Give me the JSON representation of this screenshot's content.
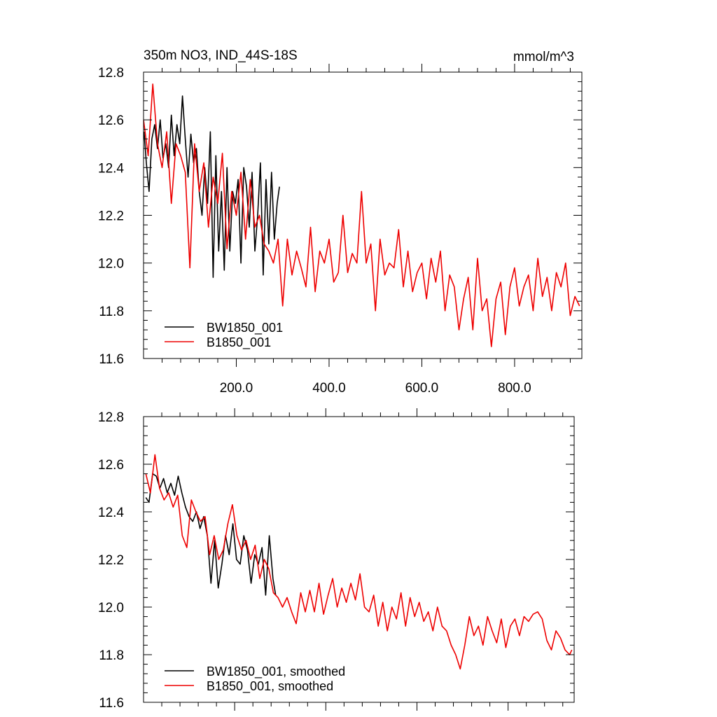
{
  "header": {
    "title": "350m NO3, IND_44S-18S",
    "units": "mmol/m^3"
  },
  "chart_data": [
    {
      "type": "line",
      "title": "350m NO3, IND_44S-18S",
      "units": "mmol/m^3",
      "xlim": [
        0,
        945
      ],
      "ylim": [
        11.6,
        12.8
      ],
      "x_ticks": [
        200,
        400,
        600,
        800
      ],
      "x_tick_labels": [
        "200.0",
        "400.0",
        "600.0",
        "800.0"
      ],
      "y_ticks": [
        11.6,
        11.8,
        12.0,
        12.2,
        12.4,
        12.6,
        12.8
      ],
      "y_tick_labels": [
        "11.6",
        "11.8",
        "12.0",
        "12.2",
        "12.4",
        "12.6",
        "12.8"
      ],
      "grid": false,
      "legend_position": "bottom-left",
      "series": [
        {
          "name": "BW1850_001",
          "color": "#000000",
          "x": [
            1,
            6,
            12,
            18,
            24,
            30,
            36,
            42,
            48,
            54,
            60,
            66,
            72,
            78,
            84,
            90,
            96,
            102,
            108,
            114,
            120,
            126,
            132,
            138,
            144,
            150,
            156,
            162,
            168,
            174,
            180,
            186,
            192,
            198,
            204,
            210,
            216,
            222,
            228,
            234,
            240,
            246,
            252,
            258,
            264,
            270,
            276,
            282,
            288,
            293
          ],
          "y": [
            12.55,
            12.42,
            12.3,
            12.52,
            12.58,
            12.48,
            12.6,
            12.44,
            12.5,
            12.4,
            12.62,
            12.45,
            12.58,
            12.5,
            12.7,
            12.52,
            12.36,
            12.54,
            12.42,
            12.48,
            12.3,
            12.2,
            12.4,
            12.25,
            12.55,
            11.94,
            12.45,
            12.05,
            12.3,
            11.97,
            12.4,
            12.05,
            12.3,
            12.25,
            12.35,
            12.0,
            12.4,
            12.32,
            12.15,
            12.38,
            12.05,
            12.2,
            12.42,
            11.95,
            12.35,
            12.08,
            12.38,
            12.1,
            12.25,
            12.32
          ]
        },
        {
          "name": "B1850_001",
          "color": "#ee0000",
          "x": [
            0,
            10,
            20,
            30,
            40,
            50,
            60,
            70,
            80,
            90,
            100,
            110,
            120,
            130,
            140,
            150,
            160,
            170,
            180,
            190,
            200,
            210,
            220,
            230,
            240,
            250,
            260,
            270,
            280,
            290,
            300,
            310,
            320,
            330,
            340,
            350,
            360,
            370,
            380,
            390,
            400,
            410,
            420,
            430,
            440,
            450,
            460,
            470,
            480,
            490,
            500,
            510,
            520,
            530,
            540,
            550,
            560,
            570,
            580,
            590,
            600,
            610,
            620,
            630,
            640,
            650,
            660,
            670,
            680,
            690,
            700,
            710,
            720,
            730,
            740,
            750,
            760,
            770,
            780,
            790,
            800,
            810,
            820,
            830,
            840,
            850,
            860,
            870,
            880,
            890,
            900,
            910,
            920,
            930,
            940
          ],
          "y": [
            12.6,
            12.45,
            12.75,
            12.5,
            12.4,
            12.55,
            12.25,
            12.5,
            12.45,
            12.38,
            11.98,
            12.5,
            12.3,
            12.42,
            12.15,
            12.36,
            12.25,
            12.46,
            12.06,
            12.3,
            12.2,
            12.38,
            12.1,
            12.35,
            12.15,
            12.2,
            12.08,
            12.05,
            12.0,
            12.1,
            11.82,
            12.1,
            11.95,
            12.05,
            11.98,
            11.9,
            12.15,
            11.88,
            12.05,
            12.0,
            12.1,
            11.92,
            11.96,
            12.2,
            11.96,
            12.04,
            12.0,
            12.3,
            12.0,
            12.08,
            11.8,
            12.1,
            11.95,
            12.0,
            11.98,
            12.14,
            11.9,
            12.05,
            11.88,
            11.96,
            12.0,
            11.85,
            12.02,
            11.92,
            12.05,
            11.8,
            11.95,
            11.9,
            11.72,
            11.85,
            11.94,
            11.72,
            12.02,
            11.8,
            11.85,
            11.65,
            11.85,
            11.92,
            11.7,
            11.9,
            11.98,
            11.82,
            11.9,
            11.95,
            11.8,
            12.02,
            11.86,
            11.94,
            11.8,
            11.96,
            11.9,
            12.0,
            11.78,
            11.86,
            11.82
          ]
        }
      ],
      "legend": [
        "BW1850_001",
        "B1850_001"
      ]
    },
    {
      "type": "line",
      "xlim": [
        0,
        945
      ],
      "ylim": [
        11.6,
        12.8
      ],
      "y_ticks": [
        11.6,
        11.8,
        12.0,
        12.2,
        12.4,
        12.6,
        12.8
      ],
      "y_tick_labels": [
        "11.6",
        "11.8",
        "12.0",
        "12.2",
        "12.4",
        "12.6",
        "12.8"
      ],
      "grid": false,
      "legend_position": "bottom-left",
      "series": [
        {
          "name": "BW1850_001, smoothed",
          "color": "#000000",
          "x": [
            5,
            12,
            20,
            28,
            36,
            44,
            52,
            60,
            68,
            76,
            84,
            92,
            100,
            108,
            116,
            124,
            132,
            140,
            148,
            156,
            164,
            172,
            180,
            188,
            196,
            204,
            212,
            220,
            228,
            236,
            244,
            252,
            260,
            268,
            276,
            284,
            290
          ],
          "y": [
            12.46,
            12.44,
            12.56,
            12.55,
            12.5,
            12.54,
            12.48,
            12.52,
            12.47,
            12.55,
            12.48,
            12.42,
            12.38,
            12.36,
            12.4,
            12.33,
            12.38,
            12.3,
            12.1,
            12.28,
            12.08,
            12.18,
            12.3,
            12.22,
            12.35,
            12.2,
            12.18,
            12.3,
            12.24,
            12.1,
            12.22,
            12.18,
            12.25,
            12.05,
            12.3,
            12.12,
            12.05
          ]
        },
        {
          "name": "B1850_001, smoothed",
          "color": "#ee0000",
          "x": [
            5,
            15,
            25,
            35,
            45,
            55,
            65,
            75,
            85,
            95,
            105,
            115,
            125,
            135,
            145,
            155,
            165,
            175,
            185,
            195,
            205,
            215,
            225,
            235,
            245,
            255,
            265,
            275,
            285,
            295,
            305,
            315,
            325,
            335,
            345,
            355,
            365,
            375,
            385,
            395,
            405,
            415,
            425,
            435,
            445,
            455,
            465,
            475,
            485,
            495,
            505,
            515,
            525,
            535,
            545,
            555,
            565,
            575,
            585,
            595,
            605,
            615,
            625,
            635,
            645,
            655,
            665,
            675,
            685,
            695,
            705,
            715,
            725,
            735,
            745,
            755,
            765,
            775,
            785,
            795,
            805,
            815,
            825,
            835,
            845,
            855,
            865,
            875,
            885,
            895,
            905,
            915,
            925,
            935,
            940
          ],
          "y": [
            12.56,
            12.48,
            12.64,
            12.5,
            12.45,
            12.48,
            12.42,
            12.47,
            12.3,
            12.25,
            12.45,
            12.4,
            12.36,
            12.38,
            12.22,
            12.3,
            12.2,
            12.24,
            12.35,
            12.43,
            12.3,
            12.24,
            12.28,
            12.2,
            12.26,
            12.12,
            12.2,
            12.16,
            12.06,
            12.04,
            12.0,
            12.04,
            11.98,
            11.93,
            12.06,
            11.98,
            12.07,
            11.98,
            12.1,
            11.97,
            12.05,
            12.12,
            12.0,
            12.08,
            12.02,
            12.1,
            12.03,
            12.14,
            12.0,
            11.98,
            12.05,
            11.92,
            12.02,
            11.9,
            12.0,
            11.95,
            12.06,
            11.92,
            12.04,
            11.96,
            12.02,
            11.94,
            11.98,
            11.9,
            12.0,
            11.92,
            11.9,
            11.84,
            11.8,
            11.74,
            11.84,
            11.96,
            11.88,
            11.92,
            11.84,
            11.96,
            11.9,
            11.85,
            11.95,
            11.83,
            11.92,
            11.95,
            11.88,
            11.96,
            11.94,
            11.97,
            11.98,
            11.95,
            11.86,
            11.82,
            11.9,
            11.87,
            11.82,
            11.8,
            11.82
          ]
        }
      ],
      "legend": [
        "BW1850_001, smoothed",
        "B1850_001, smoothed"
      ]
    }
  ]
}
